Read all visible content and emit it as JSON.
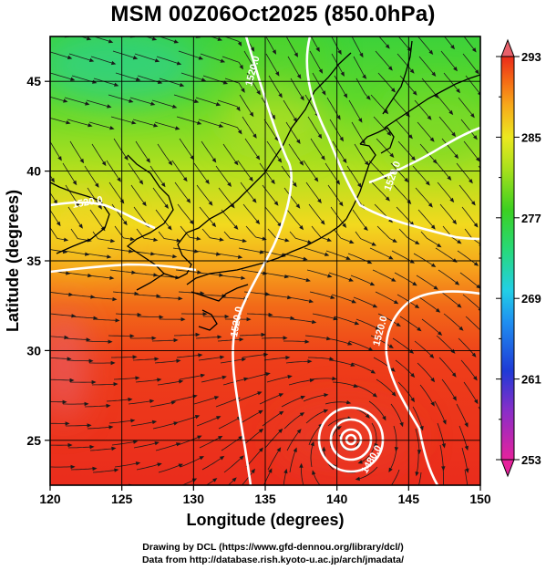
{
  "title": "MSM 00Z06Oct2025 (850.0hPa)",
  "axes": {
    "xlabel": "Longitude (degrees)",
    "ylabel": "Latitude  (degrees)",
    "x_range": [
      120,
      150
    ],
    "y_range": [
      22.5,
      47.5
    ],
    "x_ticks": [
      "120",
      "125",
      "130",
      "135",
      "140",
      "145",
      "150"
    ],
    "y_ticks": [
      "25",
      "30",
      "35",
      "40",
      "45"
    ],
    "grid": true
  },
  "colorbar": {
    "min": 253,
    "max": 293,
    "tick_labels": [
      "293",
      "285",
      "277",
      "269",
      "261",
      "253"
    ],
    "colors": [
      "#e6229c",
      "#8a2ec8",
      "#1f3ad6",
      "#1f8ef0",
      "#22cfe6",
      "#27d97a",
      "#3cd020",
      "#a8e01c",
      "#ece820",
      "#f7a81a",
      "#f56a16",
      "#ea2b1a",
      "#e8606a"
    ]
  },
  "contour_labels": [
    "1520.0",
    "1520.0",
    "1520.0",
    "1520.0",
    "1520.0",
    "1480.0"
  ],
  "cyclone_center": {
    "lon": 141,
    "lat": 25.2
  },
  "footer": {
    "line1": "Drawing by DCL (https://www.gfd-dennou.org/library/dcl/)",
    "line2": "Data from http://database.rish.kyoto-u.ac.jp/arch/jmadata/"
  }
}
